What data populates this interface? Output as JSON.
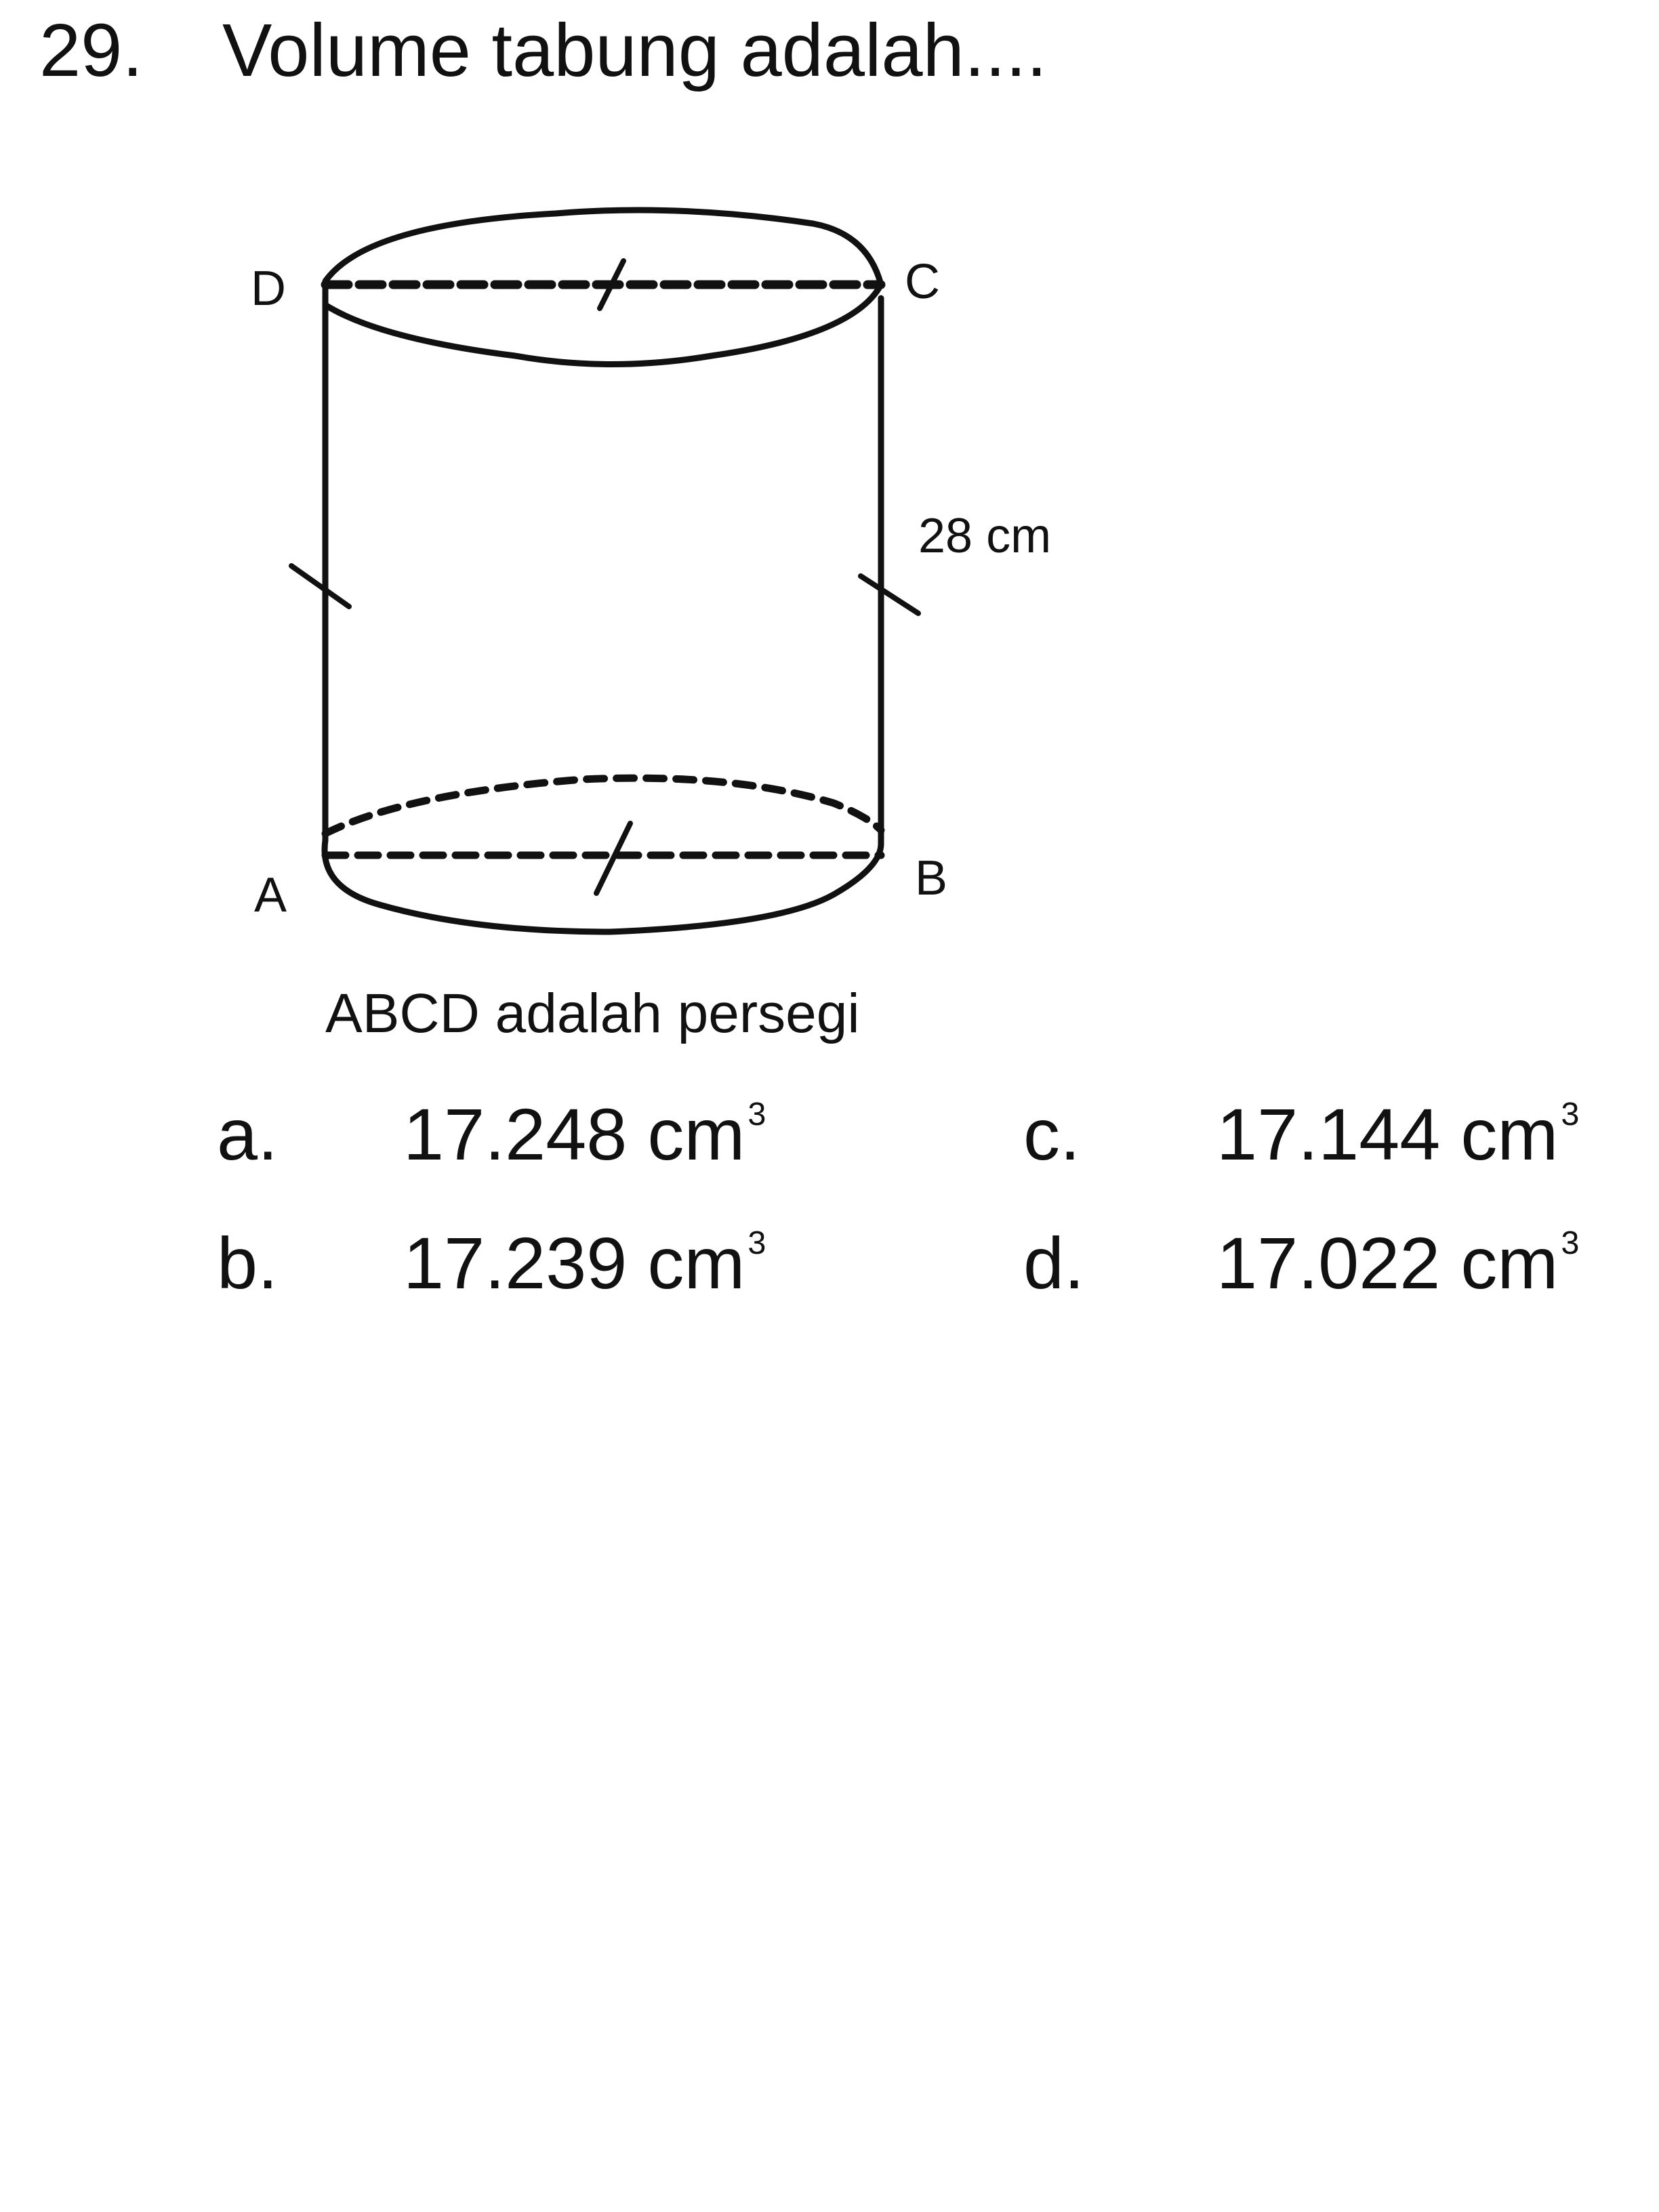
{
  "question": {
    "number": "29.",
    "text": "Volume tabung adalah...."
  },
  "figure": {
    "labels": {
      "a": "A",
      "b": "B",
      "c": "C",
      "d": "D"
    },
    "height_label": "28 cm",
    "caption": "ABCD adalah persegi"
  },
  "options": [
    {
      "letter": "a.",
      "value": "17.248 cm",
      "exp": "3"
    },
    {
      "letter": "b.",
      "value": "17.239 cm",
      "exp": "3"
    },
    {
      "letter": "c.",
      "value": "17.144 cm",
      "exp": "3"
    },
    {
      "letter": "d.",
      "value": "17.022 cm",
      "exp": "3"
    }
  ]
}
